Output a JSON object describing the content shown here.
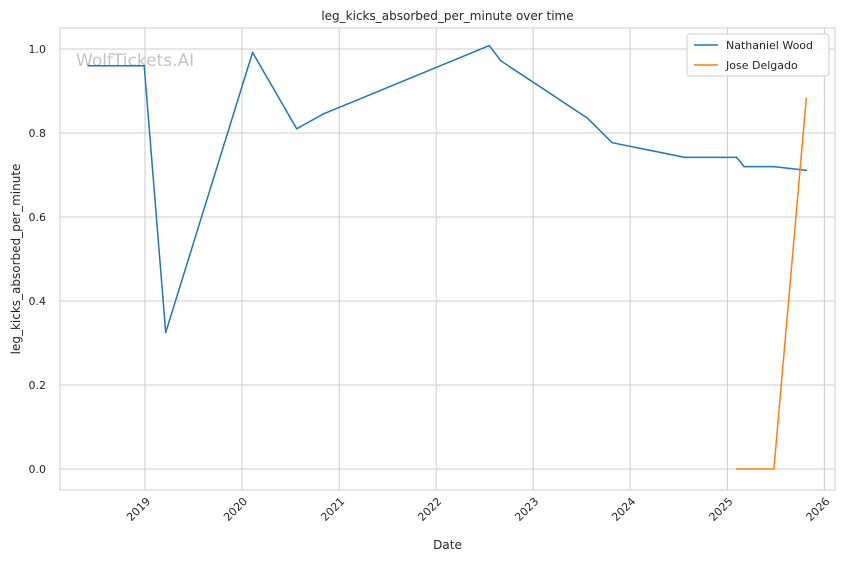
{
  "chart_data": {
    "type": "line",
    "title": "leg_kicks_absorbed_per_minute over time",
    "xlabel": "Date",
    "ylabel": "leg_kicks_absorbed_per_minute",
    "watermark": "WolfTickets.AI",
    "xlim": [
      "2018-02-15",
      "2026-02-10"
    ],
    "ylim": [
      -0.05,
      1.05
    ],
    "x_ticks": [
      "2019",
      "2020",
      "2021",
      "2022",
      "2023",
      "2024",
      "2025",
      "2026"
    ],
    "y_ticks": [
      "0.0",
      "0.2",
      "0.4",
      "0.6",
      "0.8",
      "1.0"
    ],
    "grid": true,
    "legend_position": "top-right",
    "series": [
      {
        "name": "Nathaniel Wood",
        "color": "#1f77b4",
        "points": [
          {
            "x": "2018-06-01",
            "y": 0.96
          },
          {
            "x": "2018-12-29",
            "y": 0.96
          },
          {
            "x": "2019-03-20",
            "y": 0.325
          },
          {
            "x": "2020-02-10",
            "y": 0.992
          },
          {
            "x": "2020-07-25",
            "y": 0.81
          },
          {
            "x": "2020-11-01",
            "y": 0.845
          },
          {
            "x": "2022-07-20",
            "y": 1.008
          },
          {
            "x": "2022-09-01",
            "y": 0.972
          },
          {
            "x": "2023-07-25",
            "y": 0.835
          },
          {
            "x": "2023-10-25",
            "y": 0.777
          },
          {
            "x": "2024-07-25",
            "y": 0.742
          },
          {
            "x": "2025-02-05",
            "y": 0.742
          },
          {
            "x": "2025-03-05",
            "y": 0.72
          },
          {
            "x": "2025-06-25",
            "y": 0.72
          },
          {
            "x": "2025-10-25",
            "y": 0.711
          }
        ]
      },
      {
        "name": "Jose Delgado",
        "color": "#ff7f0e",
        "points": [
          {
            "x": "2025-02-05",
            "y": 0.0
          },
          {
            "x": "2025-06-25",
            "y": 0.0
          },
          {
            "x": "2025-10-25",
            "y": 0.883
          }
        ]
      }
    ]
  }
}
